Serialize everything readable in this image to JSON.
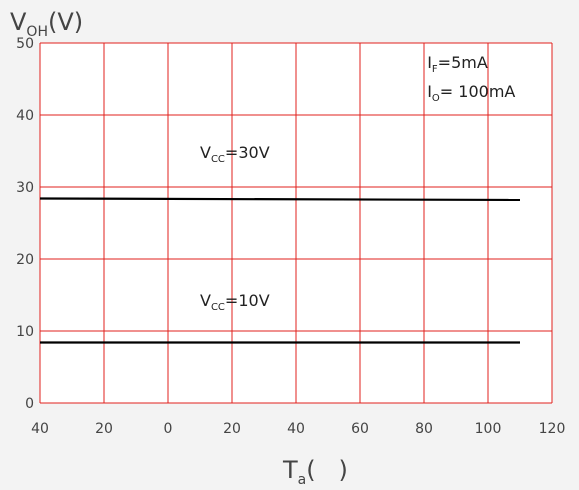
{
  "chart_data": {
    "type": "line",
    "ylabel_main": "V",
    "ylabel_sub": "OH",
    "ylabel_unit": "(V)",
    "xlabel_main": "T",
    "xlabel_sub": "a",
    "xlabel_unit": "(   )",
    "x_tick_labels": [
      "40",
      "20",
      "0",
      "20",
      "40",
      "60",
      "80",
      "100",
      "120"
    ],
    "x_ticks": [
      -40,
      -20,
      0,
      20,
      40,
      60,
      80,
      100,
      120
    ],
    "y_ticks": [
      0,
      10,
      20,
      30,
      40,
      50
    ],
    "xlim": [
      -40,
      120
    ],
    "ylim": [
      0,
      50
    ],
    "grid": true,
    "colors": {
      "grid": "#e0201c",
      "series": "#000000",
      "background": "#ffffff",
      "page": "#f3f3f3"
    },
    "series": [
      {
        "x": [
          -40,
          110
        ],
        "y": [
          28.4,
          28.2
        ]
      },
      {
        "x": [
          -40,
          110
        ],
        "y": [
          8.4,
          8.4
        ]
      }
    ],
    "annotations": [
      {
        "main": "V",
        "sub": "CC",
        "rest": "=30V",
        "x": 10,
        "y": 34
      },
      {
        "main": "V",
        "sub": "CC",
        "rest": "=10V",
        "x": 10,
        "y": 13.5
      },
      {
        "main": "I",
        "sub": "F",
        "rest": "=5mA",
        "x": 81,
        "y": 46.5
      },
      {
        "main": "I",
        "sub": "O",
        "rest": "= 100mA",
        "x": 81,
        "y": 42.5
      }
    ]
  }
}
